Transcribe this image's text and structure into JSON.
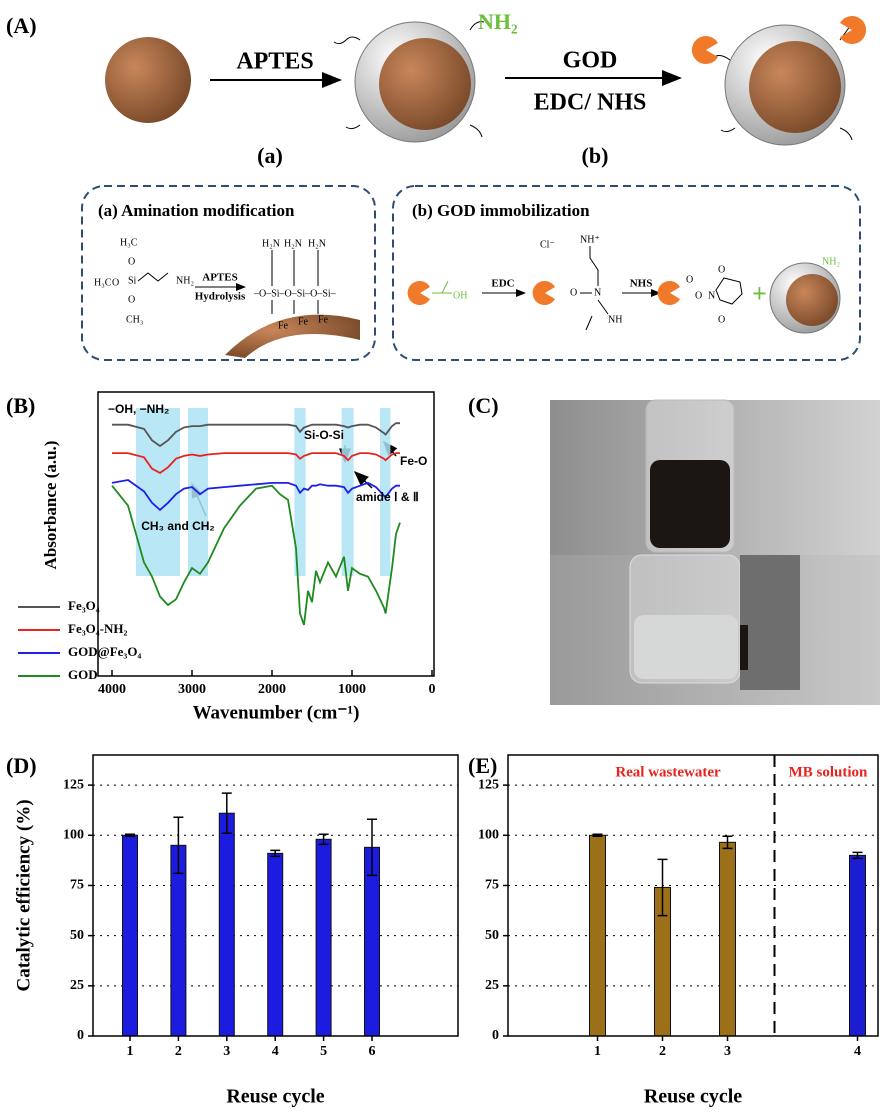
{
  "panel_labels": [
    "(A)",
    "(B)",
    "(C)",
    "(D)",
    "(E)"
  ],
  "scheme": {
    "arrow1": "APTES",
    "arrow2_top": "GOD",
    "arrow2_bottom": "EDC/ NHS",
    "surface_group": "NH₂",
    "step_a": "(a)",
    "step_b": "(b)",
    "box_a": {
      "title": "(a) Amination modification",
      "silane": [
        "H₃C",
        "O",
        "Si",
        "O",
        "O",
        "NH₂",
        "H₃C",
        "CH₃"
      ],
      "reagent": "APTES",
      "condition": "Hydrolysis",
      "chain": "–O–Si–O–Si–O–Si–",
      "amines": [
        "H₂N",
        "H₂N",
        "H₂N"
      ],
      "iron": [
        "Fe",
        "Fe",
        "Fe"
      ]
    },
    "box_b": {
      "title": "(b) GOD immobilization",
      "acid": "OH",
      "edc": "EDC",
      "intermediate": [
        "Cl⁻",
        "NH⁺",
        "O",
        "N",
        "NH"
      ],
      "nhs": "NHS",
      "ester": [
        "O",
        "O",
        "N",
        "O",
        "O"
      ],
      "plus": "+",
      "amine": "NH₂"
    }
  },
  "chart_data": [
    {
      "type": "line",
      "x_label": "Wavenumber (cm⁻¹)",
      "y_label": "Absorbance (a.u.)",
      "xlim": [
        4175,
        -25
      ],
      "ylim": [
        0,
        1
      ],
      "xticks": [
        4000,
        3000,
        2000,
        1000,
        0
      ],
      "legend": "lower left",
      "highlight_bands": [
        [
          3700,
          3150
        ],
        [
          3050,
          2800
        ],
        [
          1720,
          1580
        ],
        [
          1130,
          980
        ],
        [
          650,
          520
        ]
      ],
      "annotations": [
        "−OH, −NH₂",
        "Si-O-Si",
        "Fe-O",
        "CH₃ and CH₂",
        "amide Ⅰ & Ⅱ"
      ],
      "x": [
        4000,
        3800,
        3600,
        3500,
        3400,
        3300,
        3200,
        3100,
        3000,
        2900,
        2800,
        2600,
        2400,
        2200,
        2000,
        1900,
        1800,
        1700,
        1650,
        1600,
        1550,
        1500,
        1450,
        1400,
        1300,
        1200,
        1100,
        1050,
        1000,
        900,
        800,
        700,
        600,
        580,
        500,
        450,
        400
      ],
      "series": [
        {
          "name": "Fe₃O₄",
          "color": "#555555",
          "values": [
            0.885,
            0.885,
            0.87,
            0.83,
            0.81,
            0.83,
            0.86,
            0.875,
            0.88,
            0.88,
            0.885,
            0.885,
            0.885,
            0.885,
            0.885,
            0.885,
            0.885,
            0.88,
            0.86,
            0.875,
            0.88,
            0.885,
            0.885,
            0.885,
            0.885,
            0.885,
            0.88,
            0.875,
            0.88,
            0.885,
            0.885,
            0.875,
            0.855,
            0.85,
            0.88,
            0.89,
            0.89
          ]
        },
        {
          "name": "Fe₃O₄-NH₂",
          "color": "#e8231e",
          "values": [
            0.785,
            0.785,
            0.77,
            0.73,
            0.715,
            0.735,
            0.765,
            0.775,
            0.78,
            0.775,
            0.78,
            0.785,
            0.785,
            0.785,
            0.785,
            0.785,
            0.785,
            0.78,
            0.765,
            0.775,
            0.78,
            0.785,
            0.785,
            0.785,
            0.785,
            0.785,
            0.775,
            0.76,
            0.775,
            0.785,
            0.785,
            0.78,
            0.765,
            0.76,
            0.78,
            0.785,
            0.785
          ]
        },
        {
          "name": "GOD@Fe₃O₄",
          "color": "#1f1fe8",
          "values": [
            0.68,
            0.69,
            0.65,
            0.61,
            0.585,
            0.61,
            0.64,
            0.66,
            0.665,
            0.64,
            0.66,
            0.665,
            0.67,
            0.675,
            0.68,
            0.68,
            0.68,
            0.67,
            0.645,
            0.66,
            0.655,
            0.67,
            0.67,
            0.675,
            0.67,
            0.67,
            0.665,
            0.645,
            0.66,
            0.67,
            0.68,
            0.665,
            0.635,
            0.63,
            0.66,
            0.67,
            0.67
          ]
        },
        {
          "name": "GOD",
          "color": "#1f8a1f",
          "values": [
            0.67,
            0.6,
            0.4,
            0.35,
            0.28,
            0.25,
            0.27,
            0.33,
            0.38,
            0.36,
            0.4,
            0.52,
            0.6,
            0.66,
            0.67,
            0.64,
            0.62,
            0.45,
            0.22,
            0.18,
            0.3,
            0.26,
            0.37,
            0.33,
            0.4,
            0.35,
            0.42,
            0.3,
            0.38,
            0.36,
            0.35,
            0.3,
            0.24,
            0.22,
            0.38,
            0.5,
            0.54
          ]
        }
      ]
    },
    {
      "type": "bar",
      "x_label": "Reuse cycle",
      "y_label": "Catalytic efficiency (%)",
      "categories": [
        "1",
        "2",
        "3",
        "4",
        "5",
        "6"
      ],
      "values": [
        100,
        95,
        111,
        91,
        98,
        94
      ],
      "errors": [
        0.5,
        14,
        10,
        1.5,
        2.5,
        14
      ],
      "colors": [
        "#1c1ce0",
        "#1c1ce0",
        "#1c1ce0",
        "#1c1ce0",
        "#1c1ce0",
        "#1c1ce0"
      ],
      "ylim": [
        0,
        140
      ],
      "yticks": [
        0,
        25,
        50,
        75,
        100,
        125
      ],
      "grid": true
    },
    {
      "type": "bar",
      "x_label": "Reuse cycle",
      "categories": [
        "1",
        "2",
        "3",
        null,
        "4"
      ],
      "values": [
        100,
        74,
        96.5,
        null,
        90
      ],
      "errors": [
        0.5,
        14,
        3,
        null,
        1.5
      ],
      "colors": [
        "#9b7018",
        "#9b7018",
        "#9b7018",
        null,
        "#1c1cd0"
      ],
      "annotations": [
        "Real wastewater",
        "MB solution"
      ],
      "annotation_color": "#e8231e",
      "ylim": [
        0,
        140
      ],
      "yticks": [
        0,
        25,
        50,
        75,
        100,
        125
      ],
      "grid": true
    }
  ]
}
